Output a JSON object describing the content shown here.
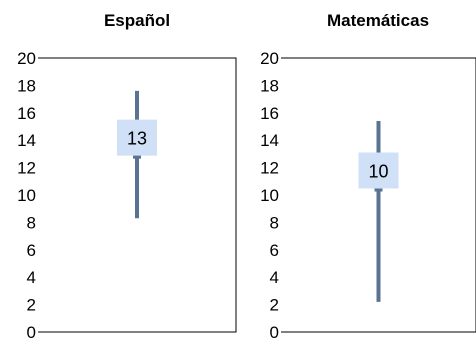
{
  "colors": {
    "range_line": "#5a7392",
    "label_box": "#cfe0f7",
    "plot_border": "#000000",
    "background": "#ffffff"
  },
  "chart_data": [
    {
      "type": "range",
      "title": "Español",
      "ylim": [
        0,
        20
      ],
      "yticks": [
        0,
        2,
        4,
        6,
        8,
        10,
        12,
        14,
        16,
        18,
        20
      ],
      "min": 8.3,
      "max": 17.6,
      "value": 12.8,
      "data_label": "13",
      "grid": false
    },
    {
      "type": "range",
      "title": "Matemáticas",
      "ylim": [
        0,
        20
      ],
      "yticks": [
        0,
        2,
        4,
        6,
        8,
        10,
        12,
        14,
        16,
        18,
        20
      ],
      "min": 2.2,
      "max": 15.4,
      "value": 10.4,
      "data_label": "10",
      "grid": false
    }
  ]
}
